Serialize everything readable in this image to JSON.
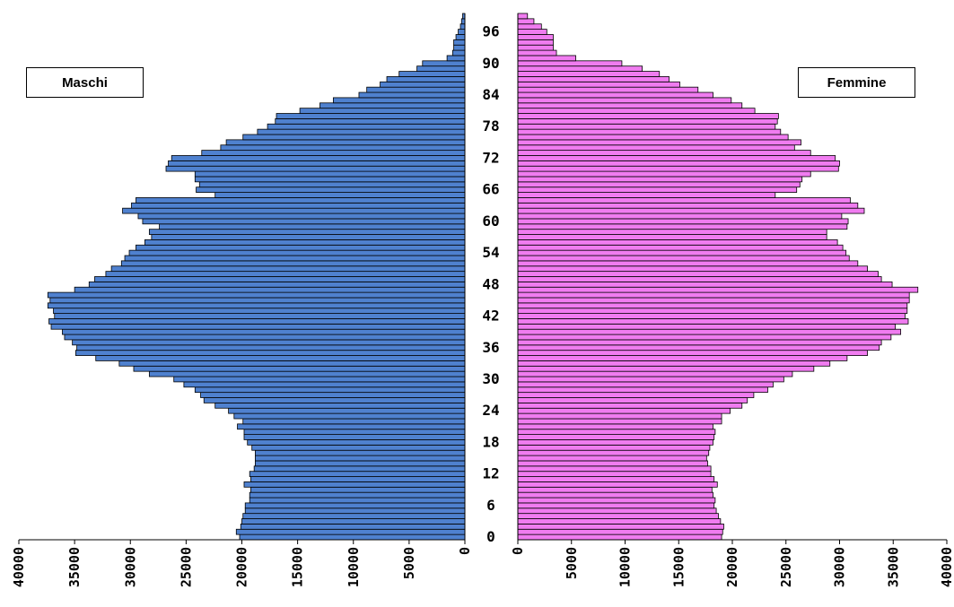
{
  "chart_data": {
    "type": "bar",
    "orientation": "horizontal-pyramid",
    "categories": [
      0,
      1,
      2,
      3,
      4,
      5,
      6,
      7,
      8,
      9,
      10,
      11,
      12,
      13,
      14,
      15,
      16,
      17,
      18,
      19,
      20,
      21,
      22,
      23,
      24,
      25,
      26,
      27,
      28,
      29,
      30,
      31,
      32,
      33,
      34,
      35,
      36,
      37,
      38,
      39,
      40,
      41,
      42,
      43,
      44,
      45,
      46,
      47,
      48,
      49,
      50,
      51,
      52,
      53,
      54,
      55,
      56,
      57,
      58,
      59,
      60,
      61,
      62,
      63,
      64,
      65,
      66,
      67,
      68,
      69,
      70,
      71,
      72,
      73,
      74,
      75,
      76,
      77,
      78,
      79,
      80,
      81,
      82,
      83,
      84,
      85,
      86,
      87,
      88,
      89,
      90,
      91,
      92,
      93,
      94,
      95,
      96,
      97,
      98,
      99
    ],
    "age_tick_labels": [
      "0",
      "6",
      "12",
      "18",
      "24",
      "30",
      "36",
      "42",
      "48",
      "54",
      "60",
      "66",
      "72",
      "78",
      "84",
      "90",
      "96"
    ],
    "series": [
      {
        "name": "Maschi",
        "color": "#4f81cf",
        "values": [
          20200,
          20500,
          20100,
          20000,
          19900,
          19700,
          19700,
          19300,
          19300,
          19200,
          19800,
          19200,
          19300,
          18900,
          18800,
          18800,
          18800,
          19100,
          19500,
          19800,
          19800,
          20400,
          19900,
          20700,
          21200,
          22400,
          23400,
          23700,
          24200,
          25200,
          26100,
          28300,
          29700,
          31000,
          33100,
          34900,
          34800,
          35200,
          35900,
          36100,
          37100,
          37300,
          36800,
          36900,
          37400,
          37200,
          37400,
          35000,
          33700,
          33200,
          32200,
          31700,
          30800,
          30500,
          30100,
          29500,
          28700,
          28100,
          28300,
          27400,
          28900,
          29300,
          30700,
          29900,
          29500,
          22400,
          24100,
          23800,
          24200,
          24200,
          26800,
          26600,
          26300,
          23600,
          21900,
          21400,
          19900,
          18600,
          17700,
          17000,
          16900,
          14800,
          13000,
          11800,
          9500,
          8800,
          7600,
          7000,
          5900,
          4300,
          3800,
          1600,
          1100,
          1000,
          1000,
          800,
          600,
          400,
          300,
          200
        ]
      },
      {
        "name": "Femmine",
        "color": "#f07cf0",
        "values": [
          19000,
          19100,
          19200,
          18900,
          18700,
          18500,
          18300,
          18400,
          18200,
          18100,
          18600,
          18300,
          18000,
          18000,
          17700,
          17600,
          17800,
          17900,
          18200,
          18300,
          18400,
          18200,
          19000,
          19000,
          19800,
          20900,
          21400,
          22000,
          23300,
          23800,
          24800,
          25600,
          27600,
          29100,
          30700,
          32600,
          33700,
          33900,
          34800,
          35700,
          35200,
          36400,
          36100,
          36300,
          36300,
          36500,
          36500,
          37300,
          34900,
          33900,
          33600,
          32600,
          31700,
          30900,
          30600,
          30300,
          29800,
          28800,
          28800,
          30700,
          30800,
          30200,
          32300,
          31700,
          31000,
          24000,
          26000,
          26300,
          26500,
          27300,
          29900,
          30000,
          29600,
          27300,
          25800,
          26400,
          25200,
          24500,
          24000,
          24200,
          24300,
          22100,
          20900,
          19900,
          18200,
          16800,
          15100,
          14100,
          13200,
          11600,
          9700,
          5400,
          3600,
          3300,
          3300,
          3300,
          2700,
          2200,
          1500,
          900
        ]
      }
    ],
    "xlim_left": [
      0,
      40000
    ],
    "xlim_right": [
      0,
      40000
    ],
    "x_tick_labels": [
      "0",
      "5000",
      "10000",
      "15000",
      "20000",
      "25000",
      "30000",
      "35000",
      "40000"
    ],
    "legend_male": "Maschi",
    "legend_female": "Femmine",
    "grid": false
  }
}
